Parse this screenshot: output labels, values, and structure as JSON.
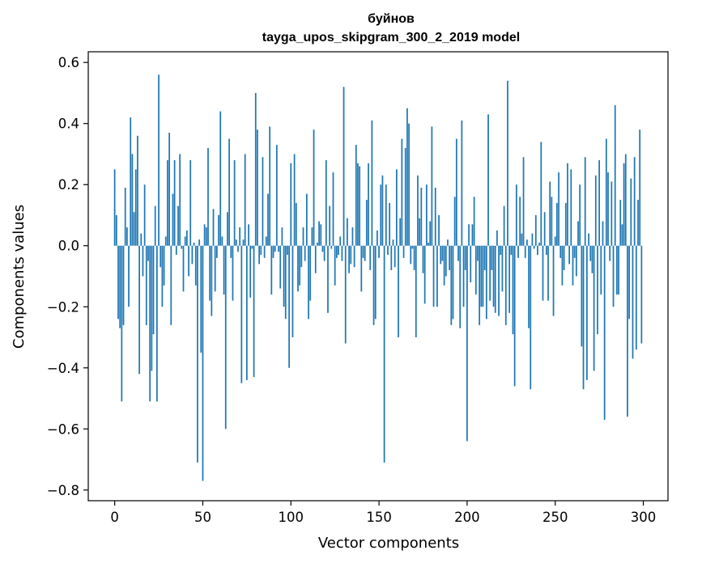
{
  "chart_data": {
    "type": "bar",
    "title": "буйнов",
    "subtitle": "tayga_upos_skipgram_300_2_2019 model",
    "xlabel": "Vector components",
    "ylabel": "Components values",
    "xlim": [
      -15,
      314
    ],
    "ylim": [
      -0.835,
      0.635
    ],
    "xticks": [
      0,
      50,
      100,
      150,
      200,
      250,
      300
    ],
    "yticks": [
      -0.8,
      -0.6,
      -0.4,
      -0.2,
      0.0,
      0.2,
      0.4,
      0.6
    ],
    "ytick_labels": [
      "−0.8",
      "−0.6",
      "−0.4",
      "−0.2",
      "0.0",
      "0.2",
      "0.4",
      "0.6"
    ],
    "bar_color": "#1f77b4",
    "grid": false,
    "values": [
      0.25,
      0.1,
      -0.24,
      -0.27,
      -0.51,
      -0.26,
      0.19,
      0.06,
      -0.2,
      0.42,
      0.3,
      0.11,
      0.25,
      0.36,
      -0.42,
      0.04,
      -0.1,
      0.2,
      -0.26,
      -0.05,
      -0.51,
      -0.41,
      -0.29,
      0.13,
      -0.51,
      0.56,
      -0.07,
      -0.2,
      -0.13,
      0.03,
      0.28,
      0.37,
      -0.26,
      0.17,
      0.28,
      -0.03,
      0.13,
      0.3,
      -0.01,
      -0.15,
      0.03,
      0.05,
      -0.1,
      0.28,
      -0.06,
      0.01,
      -0.13,
      -0.71,
      0.02,
      -0.35,
      -0.77,
      0.07,
      0.06,
      0.32,
      -0.18,
      -0.23,
      0.12,
      -0.15,
      -0.04,
      0.1,
      0.44,
      0.03,
      -0.16,
      -0.6,
      0.11,
      0.35,
      -0.04,
      -0.18,
      0.28,
      0.02,
      -0.02,
      0.06,
      -0.45,
      0.02,
      0.3,
      -0.44,
      0.07,
      -0.17,
      -0.01,
      -0.43,
      0.5,
      0.38,
      -0.06,
      -0.03,
      0.29,
      -0.04,
      0.03,
      0.17,
      0.39,
      -0.16,
      -0.04,
      -0.02,
      0.33,
      -0.02,
      -0.14,
      0.06,
      -0.2,
      -0.24,
      -0.03,
      -0.4,
      0.27,
      -0.3,
      0.3,
      0.14,
      -0.15,
      -0.13,
      -0.07,
      0.06,
      -0.05,
      0.17,
      -0.24,
      -0.18,
      0.06,
      0.38,
      -0.09,
      0.01,
      0.08,
      0.07,
      -0.02,
      -0.05,
      0.28,
      -0.22,
      0.13,
      -0.01,
      0.24,
      -0.13,
      -0.04,
      -0.03,
      0.03,
      -0.05,
      0.52,
      -0.32,
      0.09,
      -0.09,
      -0.06,
      0.06,
      -0.07,
      0.33,
      0.27,
      0.26,
      -0.15,
      -0.04,
      -0.05,
      0.15,
      0.27,
      -0.08,
      0.41,
      -0.26,
      -0.24,
      0.05,
      -0.04,
      0.2,
      0.23,
      -0.71,
      0.2,
      -0.03,
      0.14,
      -0.08,
      0.02,
      -0.07,
      0.25,
      -0.3,
      0.09,
      0.35,
      -0.04,
      0.32,
      0.45,
      0.4,
      -0.06,
      -0.01,
      -0.08,
      -0.3,
      0.23,
      0.09,
      0.19,
      -0.09,
      -0.19,
      0.2,
      0.01,
      0.08,
      0.39,
      -0.2,
      0.19,
      -0.2,
      0.1,
      -0.06,
      -0.05,
      -0.13,
      -0.1,
      0.02,
      -0.08,
      -0.26,
      -0.24,
      0.16,
      0.35,
      -0.05,
      -0.27,
      0.41,
      -0.2,
      -0.08,
      -0.64,
      0.07,
      -0.12,
      0.07,
      0.16,
      -0.16,
      -0.05,
      -0.26,
      -0.2,
      -0.2,
      -0.08,
      -0.24,
      0.43,
      -0.18,
      -0.08,
      -0.2,
      -0.22,
      0.05,
      -0.23,
      -0.03,
      -0.15,
      0.13,
      -0.26,
      0.54,
      -0.22,
      -0.03,
      -0.29,
      -0.46,
      0.2,
      -0.04,
      0.16,
      0.04,
      0.29,
      -0.04,
      0.02,
      -0.27,
      -0.47,
      0.04,
      -0.01,
      0.1,
      -0.03,
      0.01,
      0.34,
      -0.18,
      0.11,
      -0.03,
      -0.18,
      0.21,
      0.16,
      -0.23,
      0.03,
      0.14,
      0.24,
      -0.04,
      -0.13,
      -0.08,
      0.14,
      0.27,
      -0.06,
      0.25,
      -0.13,
      -0.04,
      -0.1,
      0.08,
      0.2,
      -0.33,
      -0.47,
      0.29,
      -0.44,
      0.04,
      -0.05,
      -0.09,
      -0.41,
      0.23,
      -0.29,
      0.28,
      -0.16,
      0.08,
      -0.57,
      0.35,
      0.24,
      -0.05,
      0.21,
      -0.2,
      0.46,
      -0.16,
      -0.16,
      0.15,
      0.07,
      0.27,
      0.3,
      -0.56,
      -0.24,
      0.22,
      -0.37,
      0.29,
      -0.34,
      0.15,
      0.38,
      -0.32
    ]
  }
}
